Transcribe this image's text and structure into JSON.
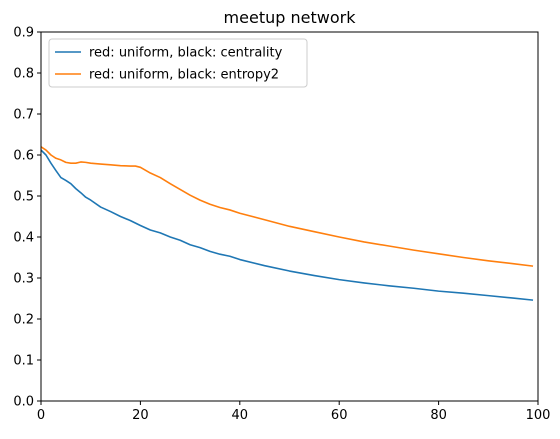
{
  "chart_data": {
    "type": "line",
    "title": "meetup network",
    "xlabel": "",
    "ylabel": "",
    "xlim": [
      0,
      100
    ],
    "ylim": [
      0,
      0.9
    ],
    "xticks": [
      "0",
      "20",
      "40",
      "60",
      "80",
      "100"
    ],
    "yticks": [
      "0.0",
      "0.1",
      "0.2",
      "0.3",
      "0.4",
      "0.5",
      "0.6",
      "0.7",
      "0.8",
      "0.9"
    ],
    "grid": false,
    "legend_position": "top-left",
    "series": [
      {
        "name": "red: uniform, black: centrality",
        "color": "#1f77b4",
        "x": [
          0,
          1,
          2,
          3,
          4,
          5,
          6,
          7,
          8,
          9,
          10,
          12,
          14,
          16,
          18,
          20,
          22,
          24,
          26,
          28,
          30,
          32,
          34,
          36,
          38,
          40,
          45,
          50,
          55,
          60,
          65,
          70,
          75,
          80,
          85,
          90,
          95,
          99
        ],
        "y": [
          0.612,
          0.6,
          0.58,
          0.562,
          0.545,
          0.538,
          0.53,
          0.518,
          0.508,
          0.497,
          0.49,
          0.473,
          0.462,
          0.45,
          0.44,
          0.428,
          0.417,
          0.41,
          0.4,
          0.392,
          0.381,
          0.374,
          0.365,
          0.358,
          0.353,
          0.345,
          0.33,
          0.317,
          0.306,
          0.296,
          0.288,
          0.281,
          0.275,
          0.268,
          0.263,
          0.257,
          0.251,
          0.246
        ]
      },
      {
        "name": "red: uniform, black: entropy2",
        "color": "#ff7f0e",
        "x": [
          0,
          1,
          2,
          3,
          4,
          5,
          6,
          7,
          8,
          9,
          10,
          12,
          14,
          16,
          18,
          19,
          20,
          21,
          22,
          24,
          26,
          28,
          30,
          32,
          34,
          36,
          38,
          40,
          45,
          50,
          55,
          60,
          65,
          70,
          75,
          80,
          85,
          90,
          95,
          99
        ],
        "y": [
          0.62,
          0.612,
          0.6,
          0.592,
          0.588,
          0.582,
          0.58,
          0.58,
          0.583,
          0.582,
          0.58,
          0.578,
          0.576,
          0.574,
          0.573,
          0.573,
          0.57,
          0.563,
          0.556,
          0.545,
          0.53,
          0.516,
          0.502,
          0.49,
          0.48,
          0.472,
          0.466,
          0.458,
          0.442,
          0.426,
          0.413,
          0.4,
          0.388,
          0.378,
          0.368,
          0.359,
          0.35,
          0.342,
          0.335,
          0.329
        ]
      }
    ]
  }
}
